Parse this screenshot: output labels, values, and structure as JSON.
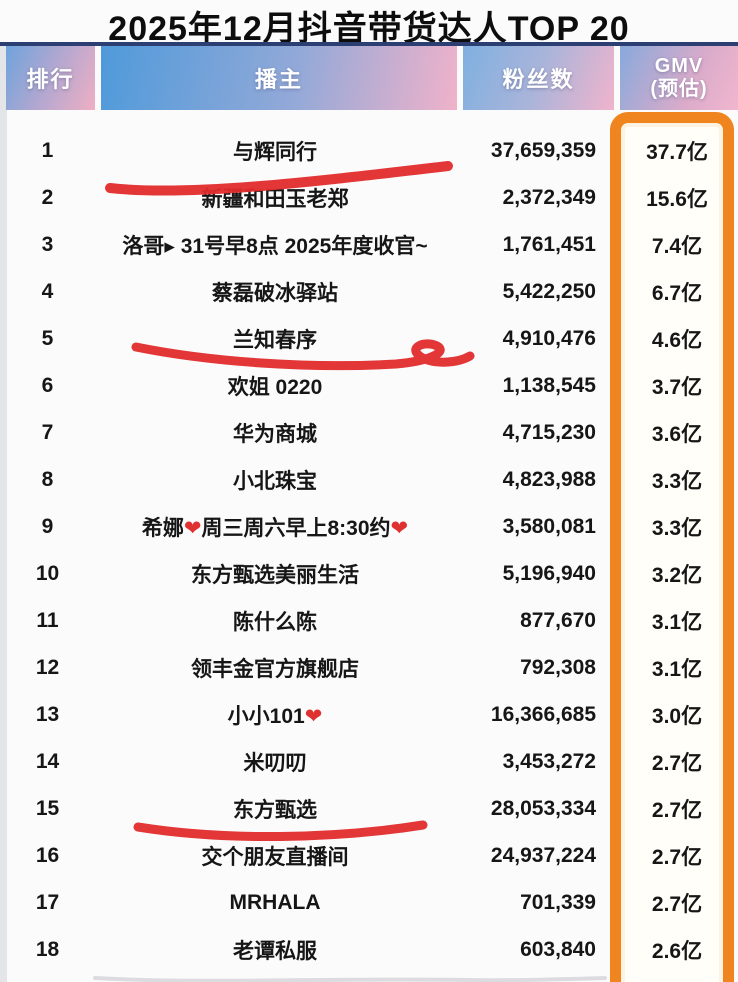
{
  "chart_data": {
    "type": "table",
    "title": "2025年12月抖音带货达人TOP 20",
    "columns": [
      "排行",
      "播主",
      "粉丝数",
      "GMV(预估)"
    ],
    "header": {
      "rank": "排行",
      "broadcaster": "播主",
      "fans": "粉丝数",
      "gmv_line1": "GMV",
      "gmv_line2": "(预估)"
    },
    "rows": [
      {
        "rank": "1",
        "name": "与辉同行",
        "fans": "37,659,359",
        "gmv": "37.7亿",
        "red_underline": true
      },
      {
        "rank": "2",
        "name": "新疆和田玉老郑",
        "fans": "2,372,349",
        "gmv": "15.6亿",
        "red_underline": false
      },
      {
        "rank": "3",
        "name": "洛哥▸ 31号早8点 2025年度收官~",
        "fans": "1,761,451",
        "gmv": "7.4亿",
        "red_underline": false
      },
      {
        "rank": "4",
        "name": "蔡磊破冰驿站",
        "fans": "5,422,250",
        "gmv": "6.7亿",
        "red_underline": false
      },
      {
        "rank": "5",
        "name": "兰知春序",
        "fans": "4,910,476",
        "gmv": "4.6亿",
        "red_underline": true
      },
      {
        "rank": "6",
        "name": "欢姐 0220",
        "fans": "1,138,545",
        "gmv": "3.7亿",
        "red_underline": false
      },
      {
        "rank": "7",
        "name": "华为商城",
        "fans": "4,715,230",
        "gmv": "3.6亿",
        "red_underline": false
      },
      {
        "rank": "8",
        "name": "小北珠宝",
        "fans": "4,823,988",
        "gmv": "3.3亿",
        "red_underline": false
      },
      {
        "rank": "9",
        "name": "希娜❤周三周六早上8:30约❤",
        "fans": "3,580,081",
        "gmv": "3.3亿",
        "red_underline": false
      },
      {
        "rank": "10",
        "name": "东方甄选美丽生活",
        "fans": "5,196,940",
        "gmv": "3.2亿",
        "red_underline": false
      },
      {
        "rank": "11",
        "name": "陈什么陈",
        "fans": "877,670",
        "gmv": "3.1亿",
        "red_underline": false
      },
      {
        "rank": "12",
        "name": "领丰金官方旗舰店",
        "fans": "792,308",
        "gmv": "3.1亿",
        "red_underline": false
      },
      {
        "rank": "13",
        "name": "小小101❤",
        "fans": "16,366,685",
        "gmv": "3.0亿",
        "red_underline": false
      },
      {
        "rank": "14",
        "name": "米叨叨",
        "fans": "3,453,272",
        "gmv": "2.7亿",
        "red_underline": false
      },
      {
        "rank": "15",
        "name": "东方甄选",
        "fans": "28,053,334",
        "gmv": "2.7亿",
        "red_underline": true
      },
      {
        "rank": "16",
        "name": "交个朋友直播间",
        "fans": "24,937,224",
        "gmv": "2.7亿",
        "red_underline": false
      },
      {
        "rank": "17",
        "name": "MRHALA",
        "fans": "701,339",
        "gmv": "2.7亿",
        "red_underline": false
      },
      {
        "rank": "18",
        "name": "老谭私服",
        "fans": "603,840",
        "gmv": "2.6亿",
        "red_underline": false
      }
    ]
  },
  "annotations": {
    "red_underlined_ranks": [
      1,
      5,
      15
    ],
    "red_color": "#e22b2b",
    "gmv_highlight_box_color": "#f0841f"
  },
  "colors": {
    "header_blue": "#4f9ada",
    "header_pink": "#f0b2ca",
    "navy_rule": "#2b3f73",
    "orange_box": "#f0841f",
    "body_text": "#161616"
  }
}
